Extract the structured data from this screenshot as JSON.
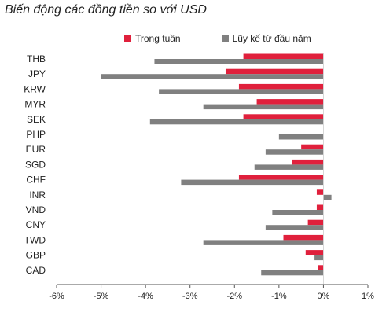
{
  "chart_data": {
    "type": "bar",
    "orientation": "horizontal",
    "title": "Biến động các đồng tiền so với USD",
    "categories": [
      "THB",
      "JPY",
      "KRW",
      "MYR",
      "SEK",
      "PHP",
      "EUR",
      "SGD",
      "CHF",
      "INR",
      "VND",
      "CNY",
      "TWD",
      "GBP",
      "CAD"
    ],
    "series": [
      {
        "name": "Trong tuần",
        "color": "#e0203c",
        "values": [
          -1.8,
          -2.2,
          -1.9,
          -1.5,
          -1.8,
          0.0,
          -0.5,
          -0.7,
          -1.9,
          -0.15,
          -0.15,
          -0.35,
          -0.9,
          -0.4,
          -0.12
        ]
      },
      {
        "name": "Lũy kế từ đầu năm",
        "color": "#808080",
        "values": [
          -3.8,
          -5.0,
          -3.7,
          -2.7,
          -3.9,
          -1.0,
          -1.3,
          -1.55,
          -3.2,
          0.18,
          -1.15,
          -1.3,
          -2.7,
          -0.2,
          -1.4
        ]
      }
    ],
    "xlim": [
      -6,
      1
    ],
    "xticks": [
      "-6%",
      "-5%",
      "-4%",
      "-3%",
      "-2%",
      "-1%",
      "0%",
      "1%"
    ],
    "xtick_values": [
      -6,
      -5,
      -4,
      -3,
      -2,
      -1,
      0,
      1
    ],
    "legend_position": "top",
    "grid": false
  }
}
